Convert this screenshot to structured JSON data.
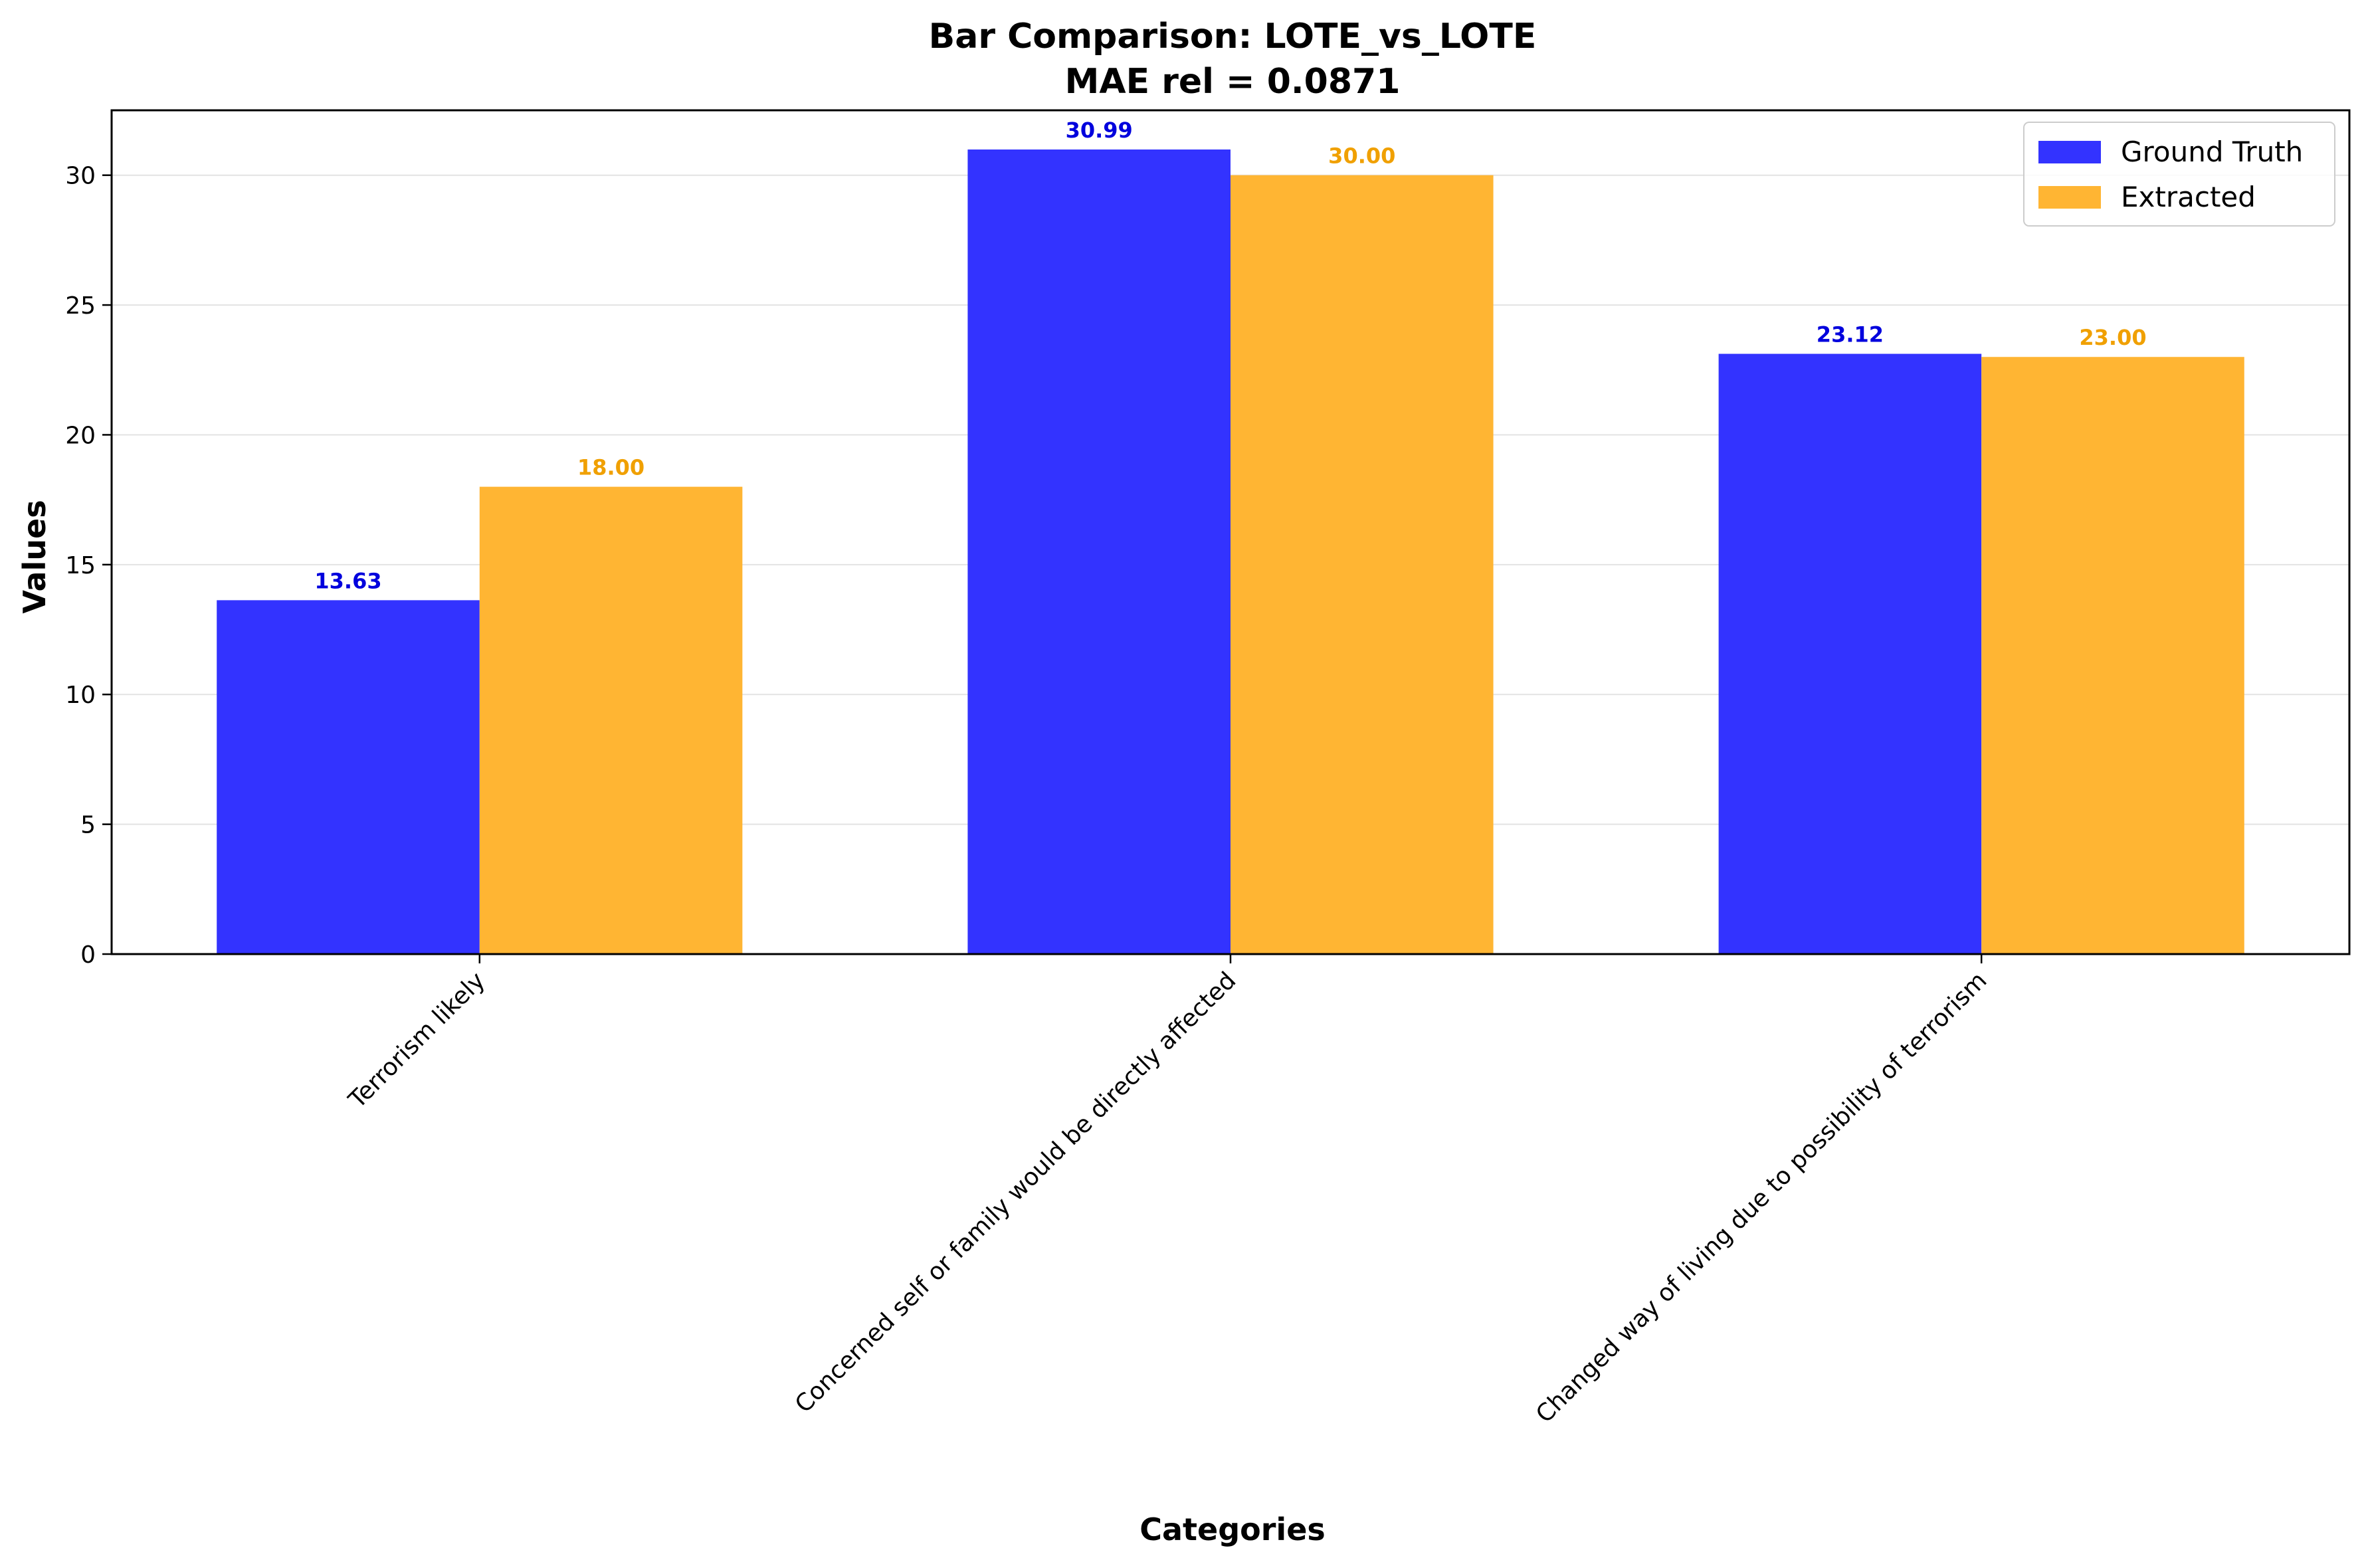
{
  "chart_data": {
    "type": "bar",
    "title": "Bar Comparison: LOTE_vs_LOTE",
    "subtitle": "MAE rel = 0.0871",
    "xlabel": "Categories",
    "ylabel": "Values",
    "categories": [
      "Terrorism likely",
      "Concerned self or family would be directly affected",
      "Changed way of living due to possibility of terrorism"
    ],
    "series": [
      {
        "name": "Ground Truth",
        "values": [
          13.63,
          30.99,
          23.12
        ],
        "labels": [
          "13.63",
          "30.99",
          "23.12"
        ],
        "color": "#3333ff",
        "label_color": "#0000dd"
      },
      {
        "name": "Extracted",
        "values": [
          18.0,
          30.0,
          23.0
        ],
        "labels": [
          "18.00",
          "30.00",
          "23.00"
        ],
        "color": "#ffb533",
        "label_color": "#f0a000"
      }
    ],
    "ylim": [
      0,
      32.5
    ],
    "yticks": [
      0,
      5,
      10,
      15,
      20,
      25,
      30
    ],
    "grid": true,
    "legend_position": "top-right"
  }
}
